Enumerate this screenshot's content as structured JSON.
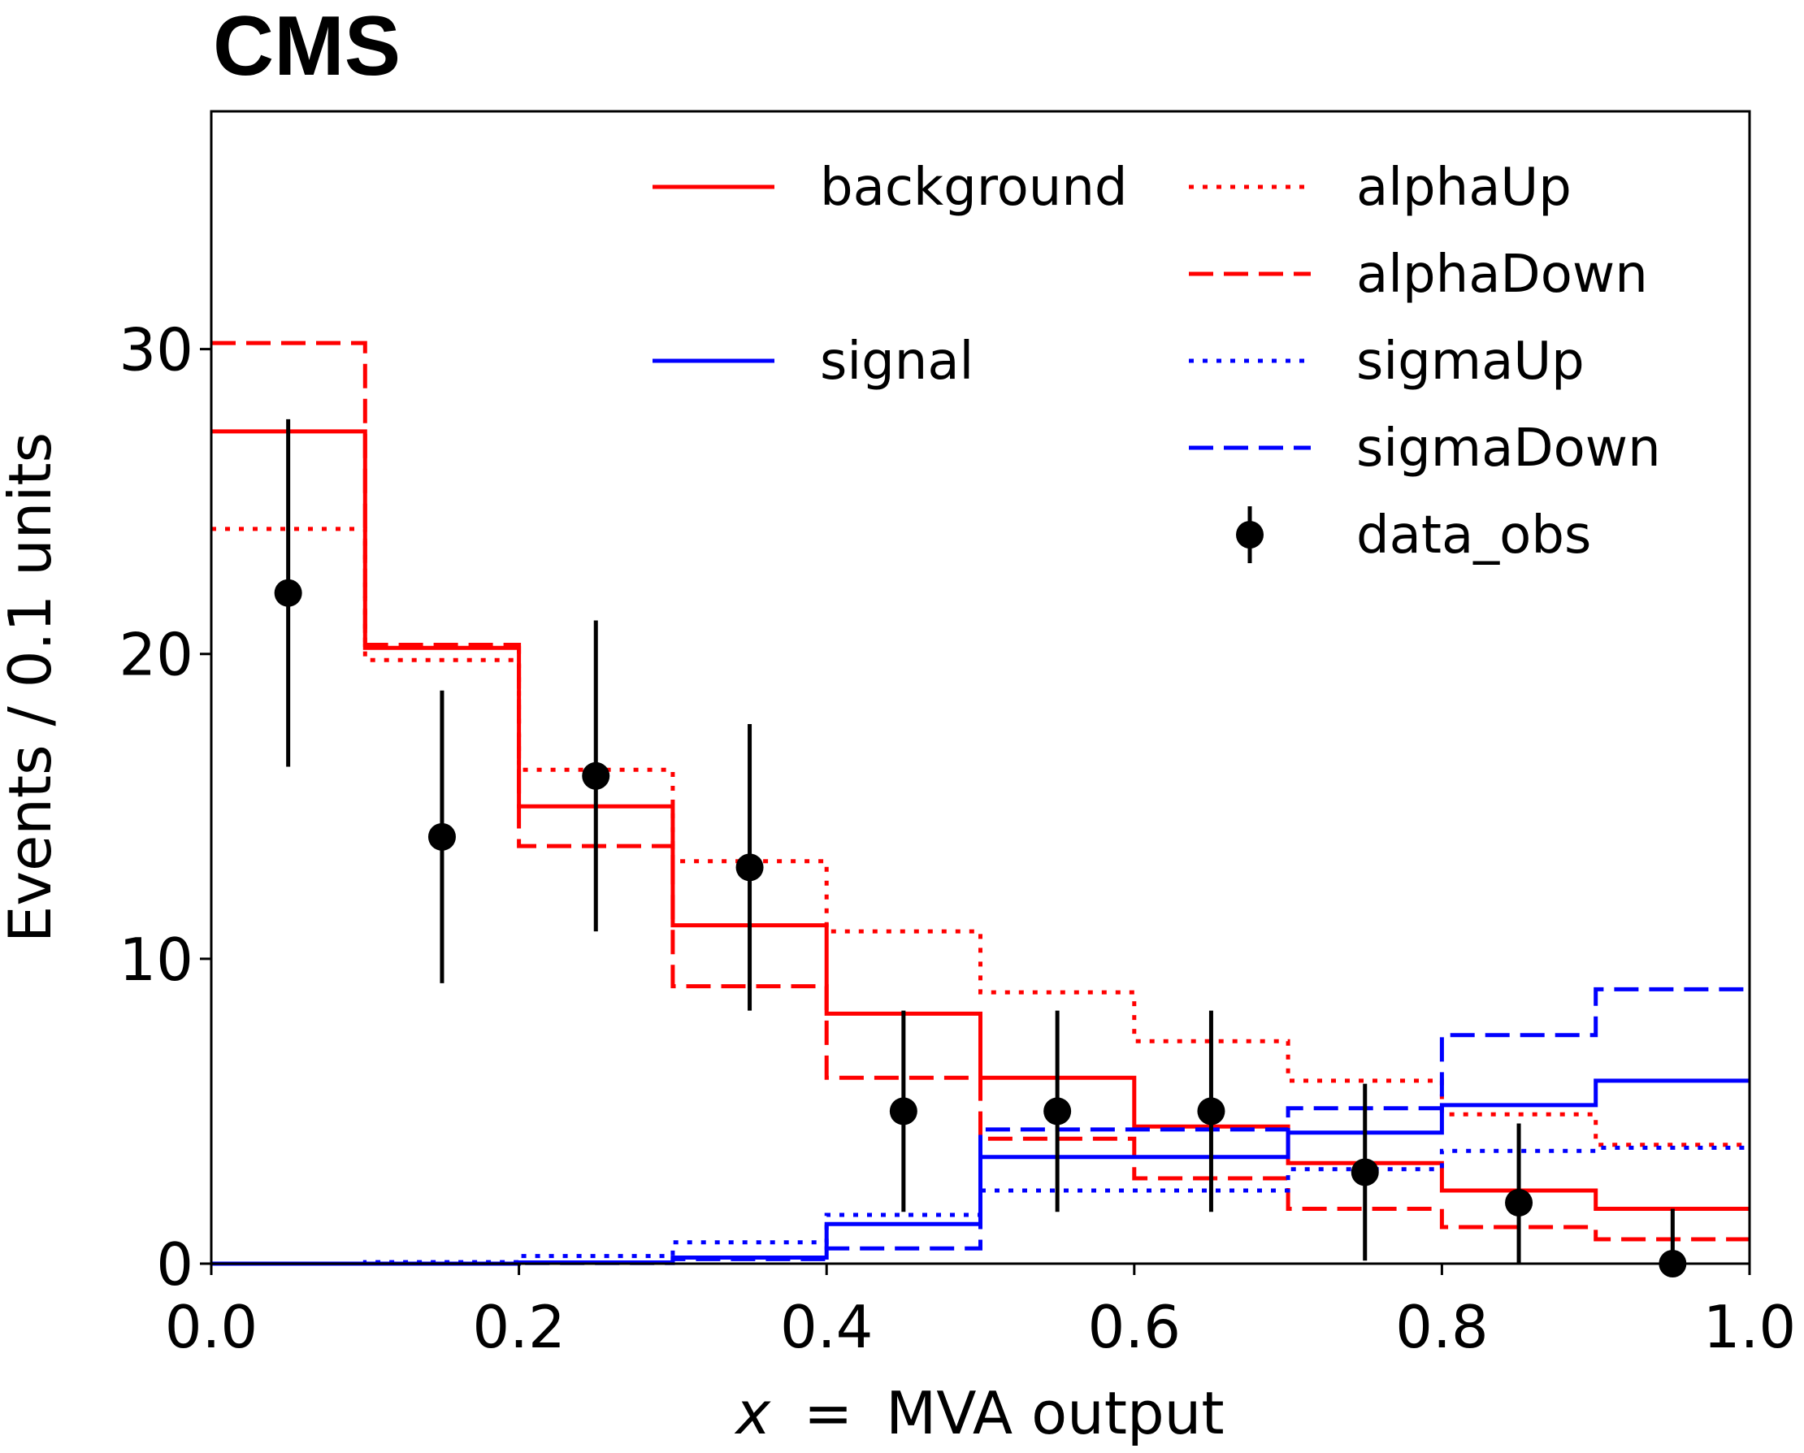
{
  "chart_data": {
    "type": "line",
    "experiment_label": "CMS",
    "xlabel": {
      "variable": "x",
      "operator": "=",
      "text": "MVA output"
    },
    "ylabel": "Events / 0.1 units",
    "xlim": [
      0.0,
      1.0
    ],
    "ylim": [
      0,
      37.8
    ],
    "xticks": [
      "0.0",
      "0.2",
      "0.4",
      "0.6",
      "0.8",
      "1.0"
    ],
    "yticks": [
      "0",
      "10",
      "20",
      "30"
    ],
    "bin_edges": [
      0.0,
      0.1,
      0.2,
      0.3,
      0.4,
      0.5,
      0.6,
      0.7,
      0.8,
      0.9,
      1.0
    ],
    "legend_position": "top-right",
    "series": [
      {
        "name": "background",
        "color": "#ff0000",
        "linestyle": "solid",
        "values": [
          27.3,
          20.2,
          15.0,
          11.1,
          8.2,
          6.1,
          4.5,
          3.3,
          2.4,
          1.8
        ]
      },
      {
        "name": "alphaUp",
        "color": "#ff0000",
        "linestyle": "dotted",
        "values": [
          24.1,
          19.8,
          16.2,
          13.2,
          10.9,
          8.9,
          7.3,
          6.0,
          4.9,
          3.9
        ]
      },
      {
        "name": "alphaDown",
        "color": "#ff0000",
        "linestyle": "dashed",
        "values": [
          30.2,
          20.3,
          13.7,
          9.1,
          6.1,
          4.1,
          2.8,
          1.8,
          1.2,
          0.8
        ]
      },
      {
        "name": "signal",
        "color": "#0000ff",
        "linestyle": "solid",
        "values": [
          0.0,
          0.0,
          0.04,
          0.2,
          1.3,
          3.5,
          3.5,
          4.3,
          5.2,
          6.0
        ]
      },
      {
        "name": "sigmaUp",
        "color": "#0000ff",
        "linestyle": "dotted",
        "values": [
          0.0,
          0.05,
          0.25,
          0.7,
          1.6,
          2.4,
          2.4,
          3.1,
          3.7,
          3.8
        ]
      },
      {
        "name": "sigmaDown",
        "color": "#0000ff",
        "linestyle": "dashed",
        "values": [
          0.0,
          0.0,
          0.02,
          0.15,
          0.5,
          4.4,
          4.4,
          5.1,
          7.5,
          9.0
        ]
      }
    ],
    "data_obs": {
      "name": "data_obs",
      "color": "#000000",
      "x": [
        0.05,
        0.15,
        0.25,
        0.35,
        0.45,
        0.55,
        0.65,
        0.75,
        0.85,
        0.95
      ],
      "y": [
        22,
        14,
        16,
        13,
        5,
        5,
        5,
        3,
        2,
        0
      ],
      "yerr": [
        5.7,
        4.8,
        5.1,
        4.7,
        3.3,
        3.3,
        3.3,
        2.9,
        2.6,
        1.8
      ]
    },
    "legend": {
      "column1": [
        "background",
        "signal"
      ],
      "column2": [
        "alphaUp",
        "alphaDown",
        "sigmaUp",
        "sigmaDown",
        "data_obs"
      ]
    }
  }
}
